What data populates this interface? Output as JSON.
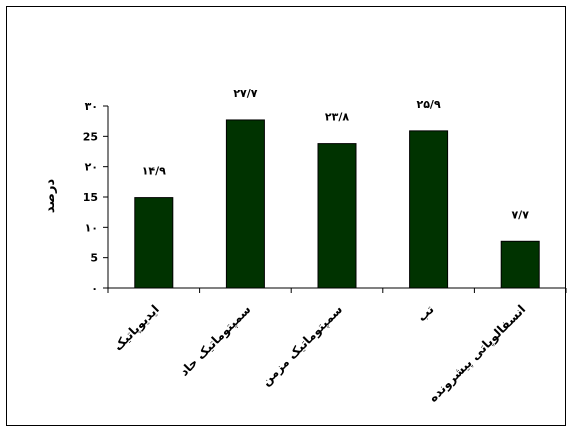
{
  "chart_data": {
    "type": "bar",
    "categories": [
      "ایدیوپاتیک",
      "سمپتوماتیک حاد",
      "سمپتوماتیک مزمن",
      "تب",
      "انسفالوپاتی پیشرونده"
    ],
    "values": [
      14.9,
      27.7,
      23.8,
      25.9,
      7.7
    ],
    "value_labels": [
      "۱۴/۹",
      "۲۷/۷",
      "۲۳/۸",
      "۲۵/۹",
      "۷/۷"
    ],
    "ylabel": "درصد",
    "ylim": [
      0,
      30
    ],
    "yticks": [
      0,
      5,
      10,
      15,
      20,
      25,
      30
    ],
    "ytick_labels": [
      "۰",
      "5",
      "۱۰",
      "15",
      "۲۰",
      "25",
      "۳۰"
    ],
    "bar_color": "#003300",
    "grid": false,
    "legend": "none"
  }
}
